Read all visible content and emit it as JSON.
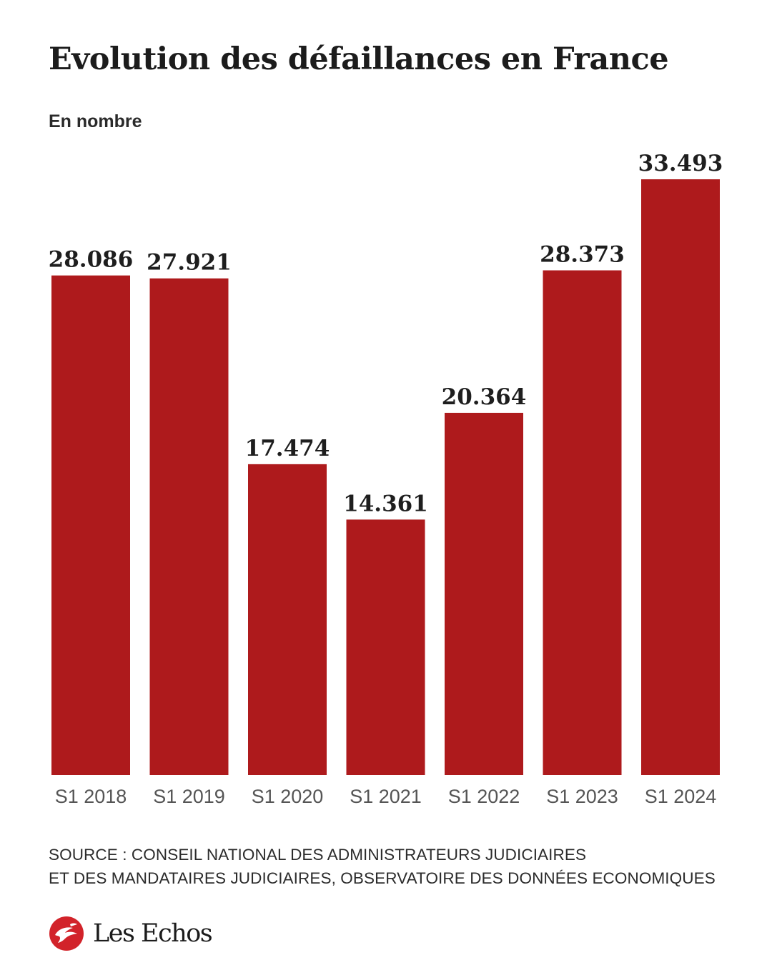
{
  "header": {
    "title": "Evolution des défaillances en France",
    "subtitle": "En nombre"
  },
  "chart_data": {
    "type": "bar",
    "title": "Evolution des défaillances en France",
    "subtitle": "En nombre",
    "categories": [
      "S1 2018",
      "S1 2019",
      "S1 2020",
      "S1 2021",
      "S1 2022",
      "S1 2023",
      "S1 2024"
    ],
    "values": [
      28086,
      27921,
      17474,
      14361,
      20364,
      28373,
      33493
    ],
    "value_labels": [
      "28.086",
      "27.921",
      "17.474",
      "14.361",
      "20.364",
      "28.373",
      "33.493"
    ],
    "bar_color": "#ae1a1c",
    "ylim": [
      0,
      33493
    ],
    "grid": false,
    "legend": "none"
  },
  "footer": {
    "source_line1": "SOURCE : CONSEIL NATIONAL DES ADMINISTRATEURS JUDICIAIRES",
    "source_line2": "ET DES MANDATAIRES JUDICIAIRES, OBSERVATOIRE DES DONNÉES ECONOMIQUES",
    "brand": "Les Echos",
    "brand_color": "#d2232a"
  }
}
